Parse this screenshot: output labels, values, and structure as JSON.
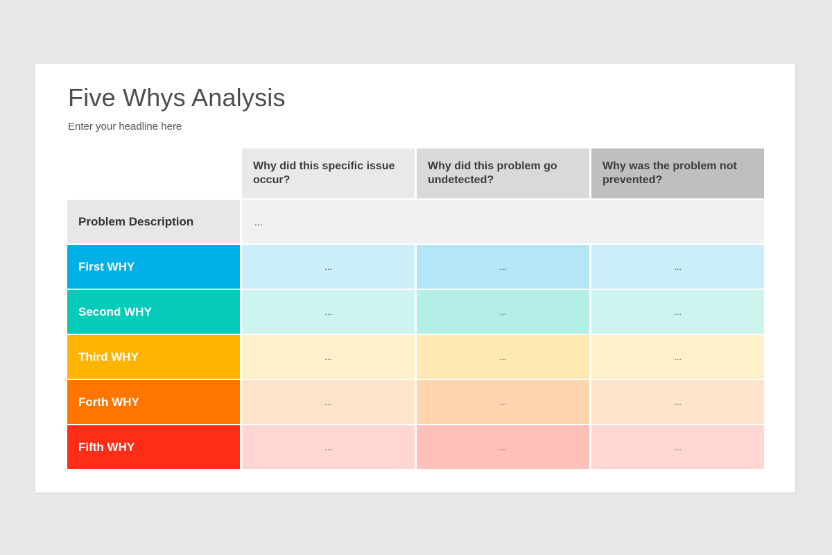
{
  "title": "Five Whys Analysis",
  "subtitle": "Enter your headline here",
  "columns": [
    "Why did this specific issue occur?",
    "Why did this problem go undetected?",
    "Why was the problem not prevented?"
  ],
  "problem": {
    "label": "Problem Description",
    "value": "..."
  },
  "rows": [
    {
      "label": "First WHY",
      "values": [
        "...",
        "...",
        "..."
      ],
      "color": "#00b0e6"
    },
    {
      "label": "Second WHY",
      "values": [
        "...",
        "...",
        "..."
      ],
      "color": "#06cbb8"
    },
    {
      "label": "Third WHY",
      "values": [
        "...",
        "...",
        "..."
      ],
      "color": "#ffb400"
    },
    {
      "label": "Forth WHY",
      "values": [
        "...",
        "...",
        "..."
      ],
      "color": "#ff7500"
    },
    {
      "label": "Fifth WHY",
      "values": [
        "...",
        "...",
        "..."
      ],
      "color": "#ff2d15"
    }
  ]
}
